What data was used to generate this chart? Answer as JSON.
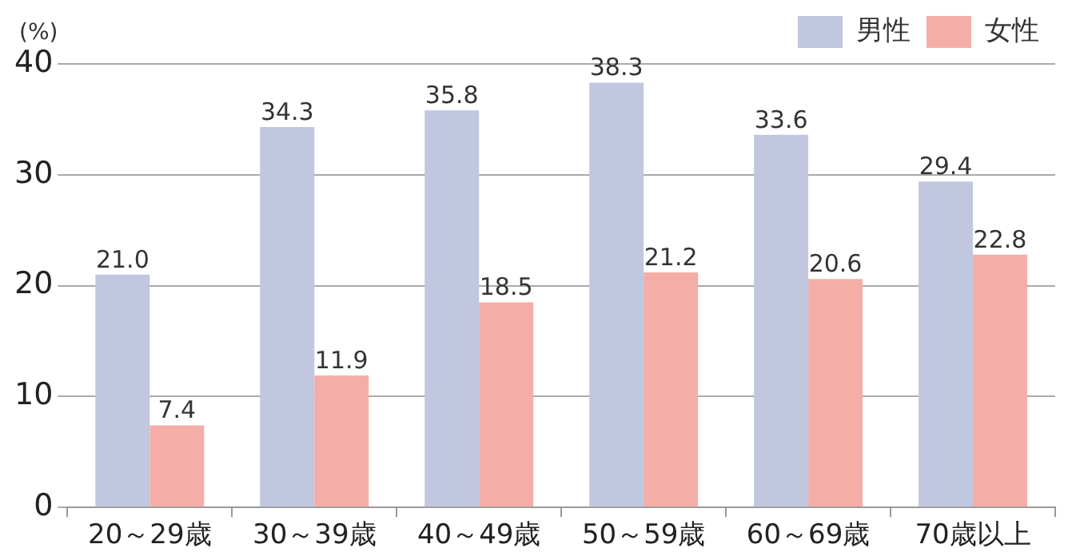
{
  "chart_data": {
    "type": "bar",
    "ylabel": "(%)",
    "categories": [
      "20～29歳",
      "30～39歳",
      "40～49歳",
      "50～59歳",
      "60～69歳",
      "70歳以上"
    ],
    "series": [
      {
        "name": "男性",
        "color": "#c1c7df",
        "values": [
          21.0,
          34.3,
          35.8,
          38.3,
          33.6,
          29.4
        ],
        "value_labels": [
          "21.0",
          "34.3",
          "35.8",
          "38.3",
          "33.6",
          "29.4"
        ]
      },
      {
        "name": "女性",
        "color": "#f4aea7",
        "values": [
          7.4,
          11.9,
          18.5,
          21.2,
          20.6,
          22.8
        ],
        "value_labels": [
          "7.4",
          "11.9",
          "18.5",
          "21.2",
          "20.6",
          "22.8"
        ]
      }
    ],
    "ylim": [
      0,
      40
    ],
    "yticks": [
      0,
      10,
      20,
      30,
      40
    ],
    "grid": "y",
    "legend": "top right"
  }
}
